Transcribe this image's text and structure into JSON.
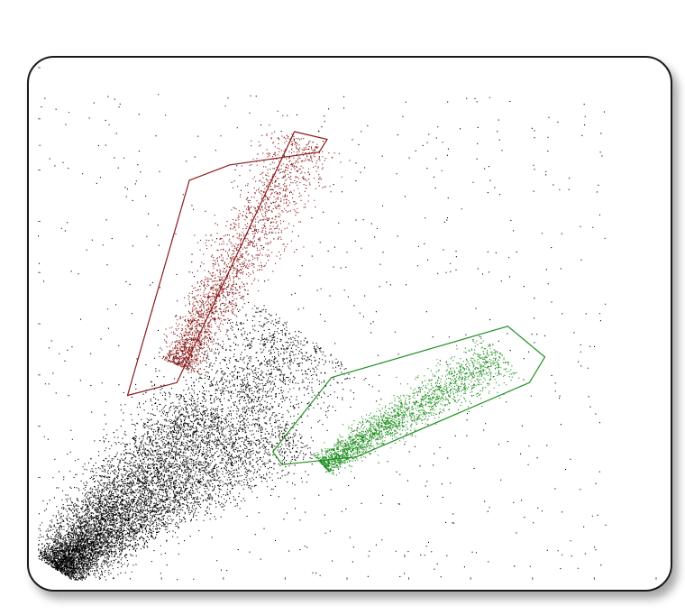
{
  "chart_data": {
    "type": "scatter",
    "title": "",
    "xlabel": "",
    "ylabel": "",
    "xlim": [
      0,
      1000
    ],
    "ylim": [
      0,
      1000
    ],
    "x_ticks": 10,
    "y_ticks": 10,
    "grid": false,
    "legend": "none",
    "colors": {
      "ungated": "#000000",
      "gate_red": "#8b1a1a",
      "gate_green": "#1f8f1f"
    },
    "series": [
      {
        "color": "#000000",
        "clusters": [
          {
            "x0": 30,
            "y0": 25,
            "x1": 430,
            "y1": 480,
            "spread": 55,
            "n": 5200
          },
          {
            "x0": 40,
            "y0": 30,
            "x1": 420,
            "y1": 290,
            "spread": 32,
            "n": 2200
          },
          {
            "x0": 30,
            "y0": 20,
            "x1": 270,
            "y1": 340,
            "spread": 40,
            "n": 2200
          }
        ],
        "background_points": 700
      },
      {
        "color": "#8b1a1a",
        "clusters": [
          {
            "x0": 225,
            "y0": 420,
            "x1": 435,
            "y1": 860,
            "spread": 28,
            "n": 2400
          }
        ],
        "gate": [
          [
            145,
            360
          ],
          [
            225,
            385
          ],
          [
            415,
            875
          ],
          [
            468,
            860
          ],
          [
            455,
            835
          ],
          [
            310,
            810
          ],
          [
            245,
            780
          ]
        ]
      },
      {
        "color": "#1f8f1f",
        "clusters": [
          {
            "x0": 460,
            "y0": 225,
            "x1": 750,
            "y1": 440,
            "spread": 20,
            "n": 2400
          }
        ],
        "gate": [
          [
            395,
            225
          ],
          [
            515,
            240
          ],
          [
            795,
            385
          ],
          [
            820,
            435
          ],
          [
            760,
            495
          ],
          [
            475,
            395
          ],
          [
            380,
            250
          ]
        ]
      }
    ]
  }
}
